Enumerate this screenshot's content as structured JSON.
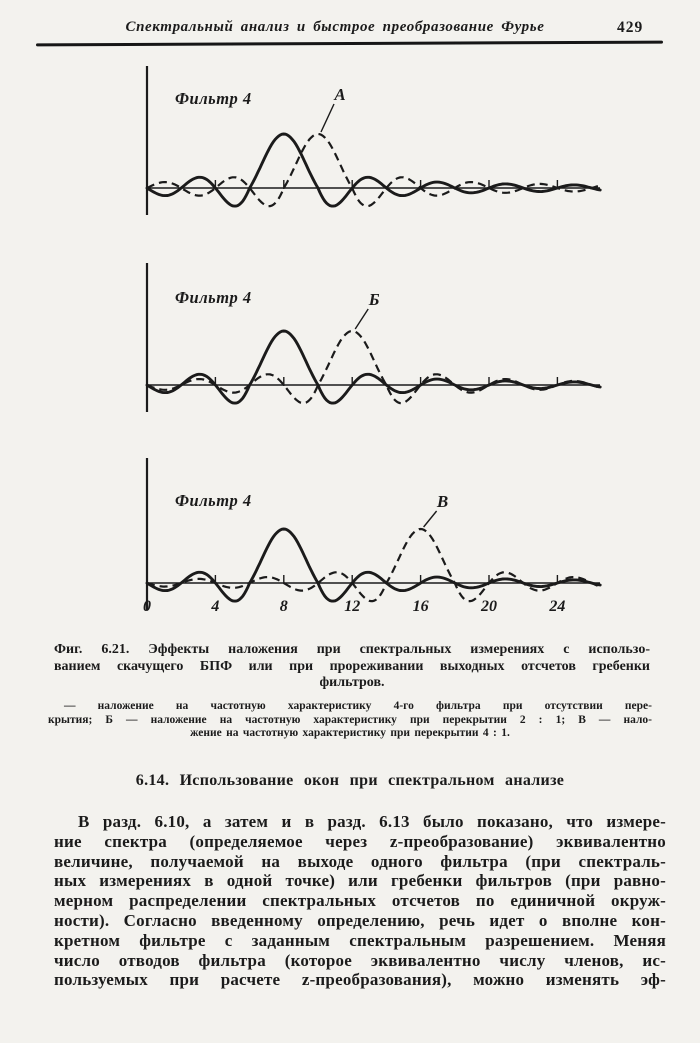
{
  "header": {
    "title": "Спектральный анализ и быстрое преобразование Фурье",
    "page_number": "429"
  },
  "figure": {
    "caption_lines": [
      "Фиг. 6.21. Эффекты наложения при спектральных измерениях с использо-",
      "ванием скачущего БПФ или при прореживании выходных отсчетов гребенки",
      "фильтров."
    ],
    "legend_lines": [
      "— наложение на частотную характеристику 4-го фильтра при отсутствии пере-",
      "крытия; Б — наложение на частотную характеристику при перекрытии 2 : 1; В — нало-",
      "жение на частотную характеристику при перекрытии 4 : 1."
    ]
  },
  "section_heading": "6.14. Использование окон при спектральном анализе",
  "paragraph_lines": [
    "В разд. 6.10, а затем и в разд. 6.13 было показано, что измере-",
    "ние спектра (определяемое через z-преобразование) эквивалентно",
    "величине, получаемой на выходе одного фильтра (при спектраль-",
    "ных измерениях в одной точке) или гребенки фильтров (при равно-",
    "мерном распределении спектральных отсчетов по единичной окруж-",
    "ности). Согласно введенному определению, речь идет о вполне кон-",
    "кретном фильтре с заданным спектральным разрешением. Меняя",
    "число отводов фильтра (которое эквивалентно числу членов, ис-",
    "пользуемых при расчете z-преобразования), можно изменять эф-"
  ],
  "chart_data": [
    {
      "type": "line",
      "title": "Фильтр 4",
      "curve_label": "А",
      "xlim": [
        0,
        26.5
      ],
      "x_ticks": [
        4,
        8,
        12,
        16,
        20,
        24
      ],
      "x_tick_labels": [],
      "main_lobe_halfwidth": 2,
      "sidelobe_zero_spacing": 2,
      "series": [
        {
          "name": "частотная характеристика 4-го фильтра",
          "style": "solid",
          "center": 8,
          "peak": 1
        },
        {
          "name": "наложение при отсутствии перекрытия (А)",
          "style": "dashed",
          "center": 10,
          "peak": 1
        }
      ]
    },
    {
      "type": "line",
      "title": "Фильтр 4",
      "curve_label": "Б",
      "xlim": [
        0,
        26.5
      ],
      "x_ticks": [
        4,
        8,
        12,
        16,
        20,
        24
      ],
      "x_tick_labels": [],
      "main_lobe_halfwidth": 2,
      "sidelobe_zero_spacing": 2,
      "series": [
        {
          "name": "частотная характеристика 4-го фильтра",
          "style": "solid",
          "center": 8,
          "peak": 1
        },
        {
          "name": "наложение при перекрытии 2 : 1 (Б)",
          "style": "dashed",
          "center": 12,
          "peak": 1
        }
      ]
    },
    {
      "type": "line",
      "title": "Фильтр 4",
      "curve_label": "В",
      "xlim": [
        0,
        26.5
      ],
      "x_ticks": [
        4,
        8,
        12,
        16,
        20,
        24
      ],
      "x_tick_labels": [
        "0",
        "4",
        "8",
        "12",
        "16",
        "20",
        "24"
      ],
      "x_tick_label_values": [
        0,
        4,
        8,
        12,
        16,
        20,
        24
      ],
      "main_lobe_halfwidth": 2,
      "sidelobe_zero_spacing": 2,
      "series": [
        {
          "name": "частотная характеристика 4-го фильтра",
          "style": "solid",
          "center": 8,
          "peak": 1
        },
        {
          "name": "наложение при перекрытии 4 : 1 (В)",
          "style": "dashed",
          "center": 16,
          "peak": 1
        }
      ]
    }
  ],
  "colors": {
    "paper": "#f3f2ee",
    "ink": "#1b1b1b"
  }
}
